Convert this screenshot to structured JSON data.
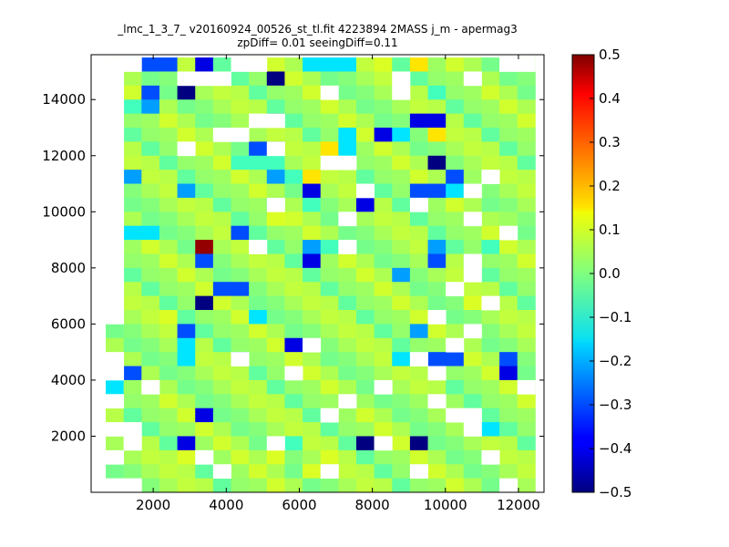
{
  "chart_data": {
    "type": "heatmap",
    "title": "_lmc_1_3_7_ v20160924_00526_st_tl.fit 4223894 2MASS j_m - apermag3",
    "subtitle": "zpDiff= 0.01 seeingDiff=0.11",
    "xlabel": "",
    "ylabel": "",
    "xlim": [
      300,
      12700
    ],
    "ylim": [
      0,
      15600
    ],
    "xticks": [
      "2000",
      "4000",
      "6000",
      "8000",
      "10000",
      "12000"
    ],
    "yticks": [
      "2000",
      "4000",
      "6000",
      "8000",
      "10000",
      "12000",
      "14000"
    ],
    "grid": false,
    "colorbar": {
      "vmin": -0.5,
      "vmax": 0.5,
      "colormap": "jet",
      "ticks": [
        "−0.5",
        "−0.4",
        "−0.3",
        "−0.2",
        "−0.1",
        "0.0",
        "0.1",
        "0.2",
        "0.3",
        "0.4",
        "0.5"
      ]
    },
    "grid_cells": {
      "x_start": 700,
      "x_step": 490,
      "y_start": 0,
      "y_step": 500,
      "rows_from_top": [
        "__ss_b_____ttt_f_u_____",
        "_________d_____________",
        "__s_d_____________e____",
        "_ec____________________",
        "_________d_______bb____",
        "_____________t_bt_u____",
        "_p______ss__ut_________",
        "_______eee________d____",
        "_c_______ceu_______sg__",
        "____c______b_____sst___",
        "_________c_e__b________",
        "_________f____________g",
        "_tt____s_______________",
        "_____r_____ce_____c__e_",
        "_____s_____b______s____",
        "________________c______",
        "______ss_______________",
        "_____d______________f__",
        "___f____t______________",
        "____s____________c_____",
        "____t_____b____________",
        "____t__c________t_ss__s",
        "_s____________________b",
        "t_______________________",
        "______________g__g_g___",
        "_____b_________________",
        "_____________________t_",
        "____b____ee___d__d_____",
        "____f____f__f__________",
        "___________f___________",
        "________________________"
      ]
    }
  }
}
